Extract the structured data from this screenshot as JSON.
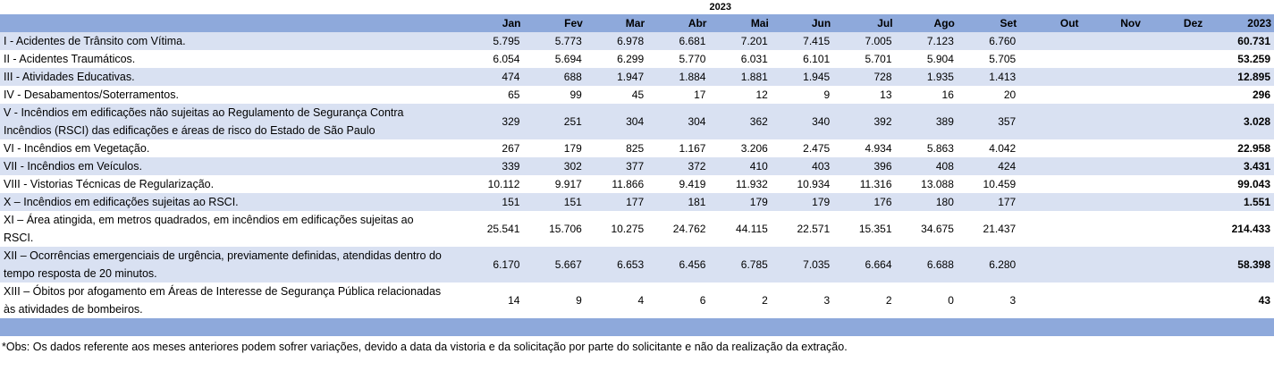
{
  "year": "2023",
  "header": {
    "months": [
      "Jan",
      "Fev",
      "Mar",
      "Abr",
      "Mai",
      "Jun",
      "Jul",
      "Ago",
      "Set",
      "Out",
      "Nov",
      "Dez"
    ],
    "total": "2023"
  },
  "rows": [
    {
      "label": "I - Acidentes de Trânsito com Vítima.",
      "values": [
        "5.795",
        "5.773",
        "6.978",
        "6.681",
        "7.201",
        "7.415",
        "7.005",
        "7.123",
        "6.760",
        "",
        "",
        ""
      ],
      "total": "60.731"
    },
    {
      "label": "II - Acidentes Traumáticos.",
      "values": [
        "6.054",
        "5.694",
        "6.299",
        "5.770",
        "6.031",
        "6.101",
        "5.701",
        "5.904",
        "5.705",
        "",
        "",
        ""
      ],
      "total": "53.259"
    },
    {
      "label": "III - Atividades Educativas.",
      "values": [
        "474",
        "688",
        "1.947",
        "1.884",
        "1.881",
        "1.945",
        "728",
        "1.935",
        "1.413",
        "",
        "",
        ""
      ],
      "total": "12.895"
    },
    {
      "label": "IV - Desabamentos/Soterramentos.",
      "values": [
        "65",
        "99",
        "45",
        "17",
        "12",
        "9",
        "13",
        "16",
        "20",
        "",
        "",
        ""
      ],
      "total": "296"
    },
    {
      "label": "V - Incêndios em edificações não sujeitas ao Regulamento de Segurança Contra Incêndios (RSCI) das edificações e áreas de risco do Estado de São Paulo",
      "values": [
        "329",
        "251",
        "304",
        "304",
        "362",
        "340",
        "392",
        "389",
        "357",
        "",
        "",
        ""
      ],
      "total": "3.028"
    },
    {
      "label": "VI - Incêndios em Vegetação.",
      "values": [
        "267",
        "179",
        "825",
        "1.167",
        "3.206",
        "2.475",
        "4.934",
        "5.863",
        "4.042",
        "",
        "",
        ""
      ],
      "total": "22.958"
    },
    {
      "label": "VII - Incêndios em Veículos.",
      "values": [
        "339",
        "302",
        "377",
        "372",
        "410",
        "403",
        "396",
        "408",
        "424",
        "",
        "",
        ""
      ],
      "total": "3.431"
    },
    {
      "label": "VIII - Vistorias Técnicas de Regularização.",
      "values": [
        "10.112",
        "9.917",
        "11.866",
        "9.419",
        "11.932",
        "10.934",
        "11.316",
        "13.088",
        "10.459",
        "",
        "",
        ""
      ],
      "total": "99.043"
    },
    {
      "label": "X – Incêndios em edificações sujeitas ao RSCI.",
      "values": [
        "151",
        "151",
        "177",
        "181",
        "179",
        "179",
        "176",
        "180",
        "177",
        "",
        "",
        ""
      ],
      "total": "1.551"
    },
    {
      "label": "XI – Área atingida, em metros quadrados, em incêndios em edificações sujeitas ao RSCI.",
      "values": [
        "25.541",
        "15.706",
        "10.275",
        "24.762",
        "44.115",
        "22.571",
        "15.351",
        "34.675",
        "21.437",
        "",
        "",
        ""
      ],
      "total": "214.433"
    },
    {
      "label": "XII – Ocorrências emergenciais de urgência, previamente definidas, atendidas dentro do tempo resposta de 20 minutos.",
      "values": [
        "6.170",
        "5.667",
        "6.653",
        "6.456",
        "6.785",
        "7.035",
        "6.664",
        "6.688",
        "6.280",
        "",
        "",
        ""
      ],
      "total": "58.398"
    },
    {
      "label": "XIII – Óbitos por afogamento em Áreas de Interesse de Segurança Pública relacionadas às atividades de bombeiros.",
      "values": [
        "14",
        "9",
        "4",
        "6",
        "2",
        "3",
        "2",
        "0",
        "3",
        "",
        "",
        ""
      ],
      "total": "43"
    }
  ],
  "note": "*Obs:  Os dados referente aos meses anteriores podem sofrer variações, devido a data da vistoria e da solicitação por parte do solicitante e não da realização da extração.",
  "colors": {
    "header_bg": "#8ea9db",
    "band_bg": "#d9e1f2"
  }
}
